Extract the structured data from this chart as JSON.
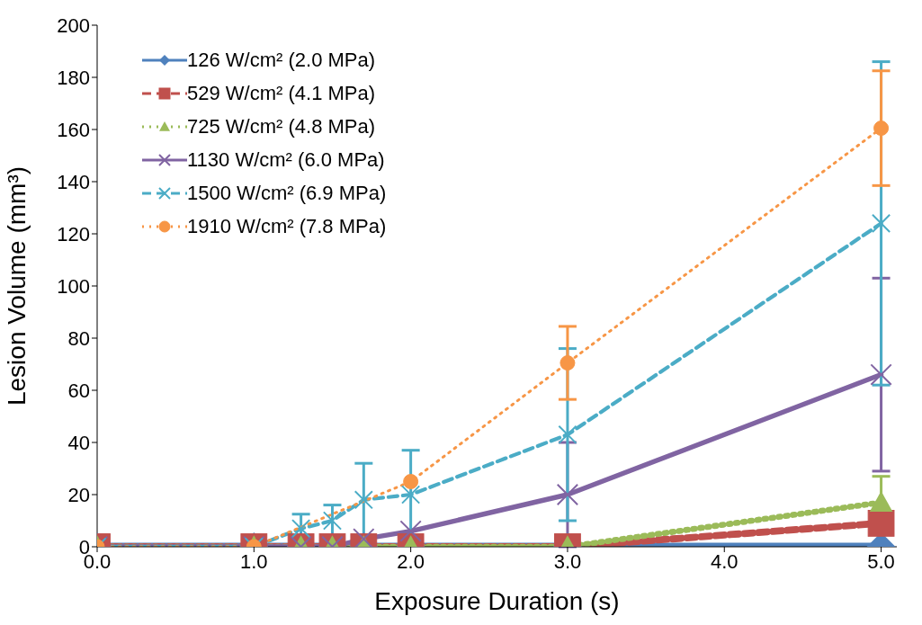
{
  "chart_data": {
    "type": "line",
    "xlabel": "Exposure Duration (s)",
    "ylabel": "Lesion Volume (mm³)",
    "xlim": [
      0,
      5.1
    ],
    "xticks": [
      {
        "value": 0,
        "label": "0.0"
      },
      {
        "value": 1,
        "label": "1.0"
      },
      {
        "value": 2,
        "label": "2.0"
      },
      {
        "value": 3,
        "label": "3.0"
      },
      {
        "value": 4,
        "label": "4.0"
      },
      {
        "value": 5,
        "label": "5.0"
      }
    ],
    "ylim": [
      0,
      200
    ],
    "yticks": [
      0,
      20,
      40,
      60,
      80,
      100,
      120,
      140,
      160,
      180,
      200
    ],
    "grid": false,
    "legend": "top left",
    "series": [
      {
        "name": "126 W/cm² (2.0 MPa)",
        "color": "#4f81bd",
        "marker": "diamond",
        "line_style": "solid",
        "x": [
          0,
          1,
          1.3,
          1.5,
          1.7,
          2,
          3,
          5
        ],
        "values": [
          0,
          0,
          0,
          0,
          0,
          0,
          0,
          0
        ]
      },
      {
        "name": "529 W/cm² (4.1 MPa)",
        "color": "#c0504d",
        "marker": "square",
        "line_style": "dashed",
        "x": [
          0,
          1,
          1.3,
          1.5,
          1.7,
          2,
          3,
          5
        ],
        "values": [
          0,
          0,
          0,
          0,
          0,
          0,
          0,
          9
        ]
      },
      {
        "name": "725 W/cm² (4.8 MPa)",
        "color": "#9bbb59",
        "marker": "triangle",
        "line_style": "dotted",
        "x": [
          0,
          1,
          1.3,
          1.5,
          1.7,
          2,
          3,
          5
        ],
        "values": [
          0,
          0,
          0,
          0,
          0,
          0,
          0,
          17
        ],
        "errors": [
          null,
          null,
          null,
          null,
          null,
          null,
          null,
          10
        ]
      },
      {
        "name": "1130 W/cm² (6.0 MPa)",
        "color": "#8064a2",
        "marker": "cross",
        "line_style": "solid",
        "x": [
          0,
          1,
          1.3,
          1.5,
          1.7,
          2,
          3,
          5
        ],
        "values": [
          0,
          0,
          0,
          0,
          3,
          6,
          20,
          66
        ],
        "errors": [
          null,
          null,
          null,
          null,
          null,
          null,
          20,
          37
        ]
      },
      {
        "name": "1500 W/cm² (6.9 MPa)",
        "color": "#4bacc6",
        "marker": "cross",
        "line_style": "dashed",
        "x": [
          0,
          1,
          1.3,
          1.5,
          1.7,
          2,
          3,
          5
        ],
        "values": [
          0,
          0,
          7,
          10,
          18,
          20,
          43,
          124
        ],
        "errors": [
          null,
          null,
          5.5,
          6,
          14,
          17,
          33,
          62
        ]
      },
      {
        "name": "1910 W/cm² (7.8 MPa)",
        "color": "#f79646",
        "marker": "circle",
        "line_style": "dotted",
        "x": [
          0,
          1,
          2,
          3,
          5
        ],
        "values": [
          0,
          0,
          25,
          70.5,
          160.5
        ],
        "errors": [
          null,
          null,
          null,
          14,
          22
        ]
      }
    ]
  }
}
